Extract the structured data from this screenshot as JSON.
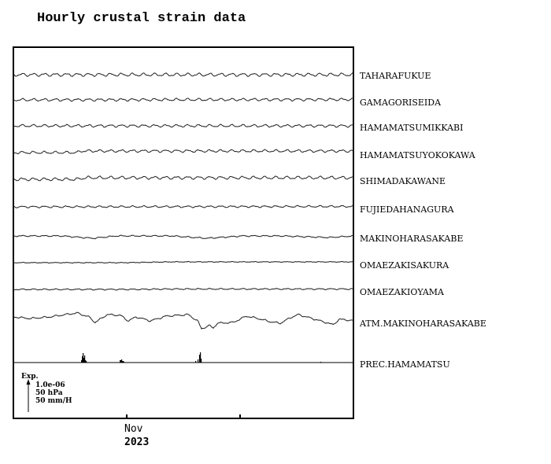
{
  "chart_data": {
    "type": "line",
    "title": "Hourly crustal strain data",
    "x_ticks": [
      "Nov",
      ""
    ],
    "x_year": "2023",
    "grid": false,
    "scale_legend": {
      "title": "Exp.",
      "lines": [
        "1.0e-06",
        "50 hPa",
        "50 mm/H"
      ]
    },
    "series": [
      {
        "name": "TAHARAFUKUE",
        "tide": 1.6,
        "trend": [
          [
            0,
            0
          ],
          [
            431,
            0
          ]
        ]
      },
      {
        "name": "GAMAGORISEIDA",
        "tide": 1.3,
        "trend": [
          [
            0,
            0
          ],
          [
            431,
            0.5
          ]
        ]
      },
      {
        "name": "HAMAMATSUMIKKABI",
        "tide": 1.3,
        "trend": [
          [
            0,
            0
          ],
          [
            431,
            0
          ]
        ]
      },
      {
        "name": "HAMAMATSUYOKOKAWA",
        "tide": 1.3,
        "trend": [
          [
            0,
            0
          ],
          [
            80,
            0
          ],
          [
            85,
            2
          ],
          [
            431,
            2
          ]
        ]
      },
      {
        "name": "SHIMADAKAWANE",
        "tide": 1.5,
        "trend": [
          [
            0,
            0
          ],
          [
            80,
            0
          ],
          [
            90,
            2
          ],
          [
            431,
            2
          ]
        ]
      },
      {
        "name": "FUJIEDAHANAGURA",
        "tide": 0.9,
        "trend": [
          [
            0,
            0
          ],
          [
            431,
            0.5
          ]
        ]
      },
      {
        "name": "MAKINOHARASAKABE",
        "tide": 0.6,
        "trend": [
          [
            0,
            0
          ],
          [
            60,
            0
          ],
          [
            100,
            -3
          ],
          [
            130,
            0
          ],
          [
            200,
            0
          ],
          [
            245,
            -3
          ],
          [
            290,
            0
          ],
          [
            340,
            0
          ],
          [
            400,
            -2
          ],
          [
            431,
            0
          ]
        ]
      },
      {
        "name": "OMAEZAKISAKURA",
        "tide": 0.3,
        "trend": [
          [
            0,
            0
          ],
          [
            140,
            0
          ],
          [
            200,
            1
          ],
          [
            431,
            1
          ]
        ]
      },
      {
        "name": "OMAEZAKIOYAMA",
        "tide": 0.6,
        "trend": [
          [
            0,
            0
          ],
          [
            150,
            0
          ],
          [
            200,
            0.5
          ],
          [
            431,
            0.5
          ]
        ]
      },
      {
        "name": "ATM.MAKINOHARASAKABE",
        "tide": 0.8,
        "trend": [
          [
            0,
            3
          ],
          [
            20,
            1
          ],
          [
            45,
            3
          ],
          [
            65,
            6
          ],
          [
            80,
            8
          ],
          [
            95,
            3
          ],
          [
            103,
            -4
          ],
          [
            118,
            6
          ],
          [
            135,
            5
          ],
          [
            145,
            -2
          ],
          [
            155,
            3
          ],
          [
            173,
            -2
          ],
          [
            193,
            4
          ],
          [
            221,
            6
          ],
          [
            233,
            -2
          ],
          [
            238,
            -12
          ],
          [
            248,
            -8
          ],
          [
            253,
            -11
          ],
          [
            258,
            -5
          ],
          [
            278,
            -4
          ],
          [
            295,
            4
          ],
          [
            310,
            1
          ],
          [
            325,
            -3
          ],
          [
            338,
            -5
          ],
          [
            353,
            3
          ],
          [
            361,
            6
          ],
          [
            375,
            2
          ],
          [
            396,
            -4
          ],
          [
            405,
            -7
          ],
          [
            413,
            0
          ],
          [
            425,
            -1
          ],
          [
            431,
            -2
          ]
        ]
      },
      {
        "name": "PREC.HAMAMATSU",
        "tide": 0,
        "events": [
          [
            85,
            3
          ],
          [
            86,
            8
          ],
          [
            87,
            12
          ],
          [
            88,
            6
          ],
          [
            89,
            9
          ],
          [
            90,
            3
          ],
          [
            91,
            2
          ],
          [
            134,
            3
          ],
          [
            135,
            3
          ],
          [
            136,
            4
          ],
          [
            137,
            2
          ],
          [
            138,
            2
          ],
          [
            139,
            1
          ],
          [
            230,
            2
          ],
          [
            233,
            4
          ],
          [
            235,
            10
          ],
          [
            236,
            13
          ],
          [
            237,
            5
          ],
          [
            389,
            1
          ]
        ]
      }
    ]
  }
}
